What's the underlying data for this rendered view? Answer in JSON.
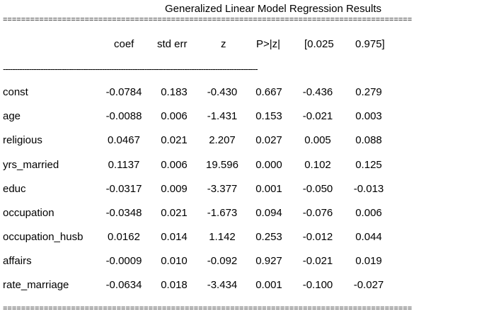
{
  "title": "Generalized Linear Model Regression Results",
  "rules": {
    "double": "==========================================================================================",
    "single": "------------------------------------------------------------------------------------------------------------"
  },
  "columns": [
    "coef",
    "std err",
    "z",
    "P>|z|",
    "[0.025",
    "0.975]"
  ],
  "rows": [
    {
      "label": "const",
      "values": [
        "-0.0784",
        "0.183",
        "-0.430",
        "0.667",
        "-0.436",
        "0.279"
      ]
    },
    {
      "label": "age",
      "values": [
        "-0.0088",
        "0.006",
        "-1.431",
        "0.153",
        "-0.021",
        "0.003"
      ]
    },
    {
      "label": "religious",
      "values": [
        "0.0467",
        "0.021",
        "2.207",
        "0.027",
        "0.005",
        "0.088"
      ]
    },
    {
      "label": "yrs_married",
      "values": [
        "0.1137",
        "0.006",
        "19.596",
        "0.000",
        "0.102",
        "0.125"
      ]
    },
    {
      "label": "educ",
      "values": [
        "-0.0317",
        "0.009",
        "-3.377",
        "0.001",
        "-0.050",
        "-0.013"
      ]
    },
    {
      "label": "occupation",
      "values": [
        "-0.0348",
        "0.021",
        "-1.673",
        "0.094",
        "-0.076",
        "0.006"
      ]
    },
    {
      "label": "occupation_husb",
      "values": [
        "0.0162",
        "0.014",
        "1.142",
        "0.253",
        "-0.012",
        "0.044"
      ]
    },
    {
      "label": "affairs",
      "values": [
        "-0.0009",
        "0.010",
        "-0.092",
        "0.927",
        "-0.021",
        "0.019"
      ]
    },
    {
      "label": "rate_marriage",
      "values": [
        "-0.0634",
        "0.018",
        "-3.434",
        "0.001",
        "-0.100",
        "-0.027"
      ]
    }
  ]
}
